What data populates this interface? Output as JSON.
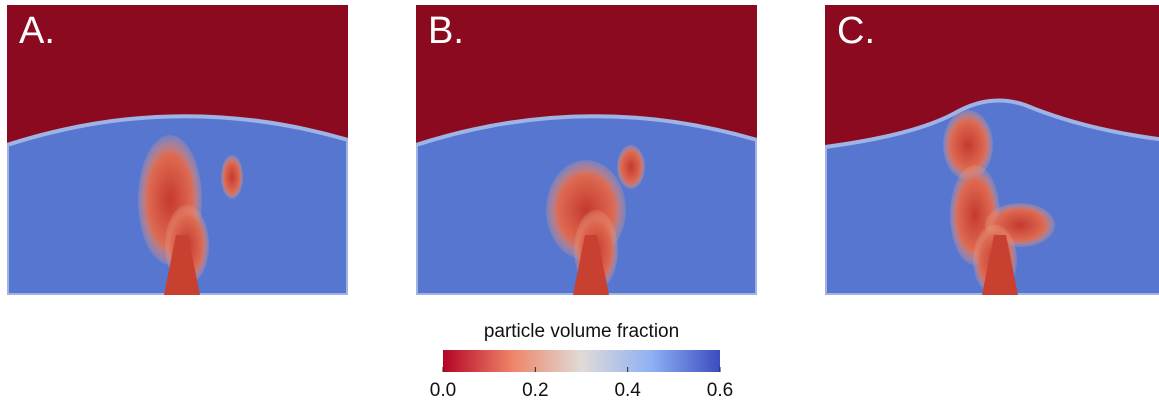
{
  "panels": [
    {
      "label": "A."
    },
    {
      "label": "B."
    },
    {
      "label": "C."
    }
  ],
  "colorbar": {
    "title": "particle volume fraction",
    "lim": [
      0,
      0.6
    ],
    "ticks": [
      {
        "value": 0,
        "label": "0.0"
      },
      {
        "value": 0.2,
        "label": "0.2"
      },
      {
        "value": 0.4,
        "label": "0.4"
      },
      {
        "value": 0.6,
        "label": "0.6"
      }
    ]
  }
}
